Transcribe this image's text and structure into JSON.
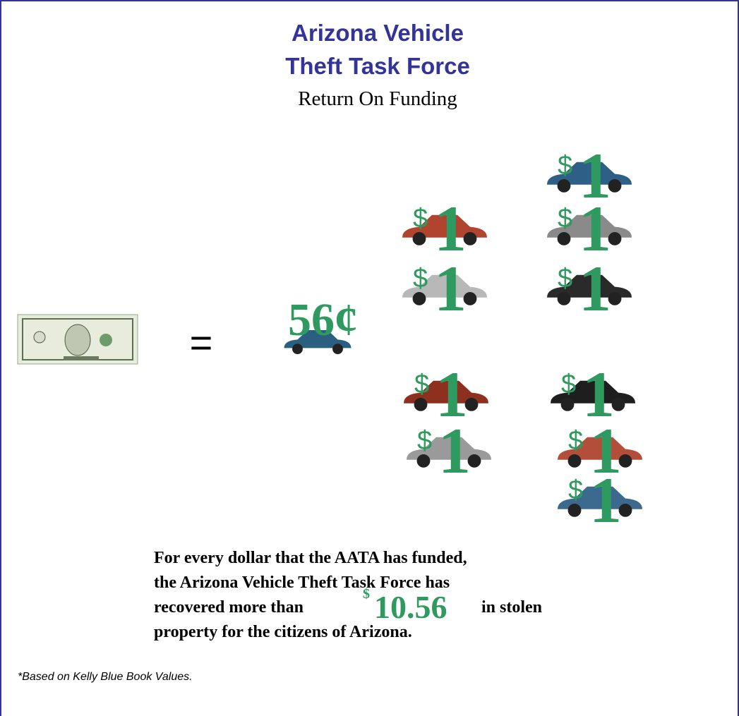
{
  "header": {
    "title_lines": [
      "Arizona Vehicle",
      "Theft Task Force"
    ],
    "subtitle": "Return On Funding"
  },
  "equation": {
    "equals": "=",
    "cost": "56¢"
  },
  "returns": [
    {
      "sign": "$",
      "amount": "1"
    },
    {
      "sign": "$",
      "amount": "1"
    },
    {
      "sign": "$",
      "amount": "1"
    },
    {
      "sign": "$",
      "amount": "1"
    },
    {
      "sign": "$",
      "amount": "1"
    },
    {
      "sign": "$",
      "amount": "1"
    },
    {
      "sign": "$",
      "amount": "1"
    },
    {
      "sign": "$",
      "amount": "1"
    },
    {
      "sign": "$",
      "amount": "1"
    },
    {
      "sign": "$",
      "amount": "1"
    }
  ],
  "statement": {
    "line1": "For every dollar that the AATA has funded,",
    "line2": "the Arizona Vehicle Theft Task Force has",
    "line3_start": "recovered more than",
    "amount_sign": "$",
    "amount": "10.56",
    "line3_end": "in stolen",
    "line4": "property for the citizens of Arizona."
  },
  "footnote": "*Based on Kelly Blue Book Values."
}
